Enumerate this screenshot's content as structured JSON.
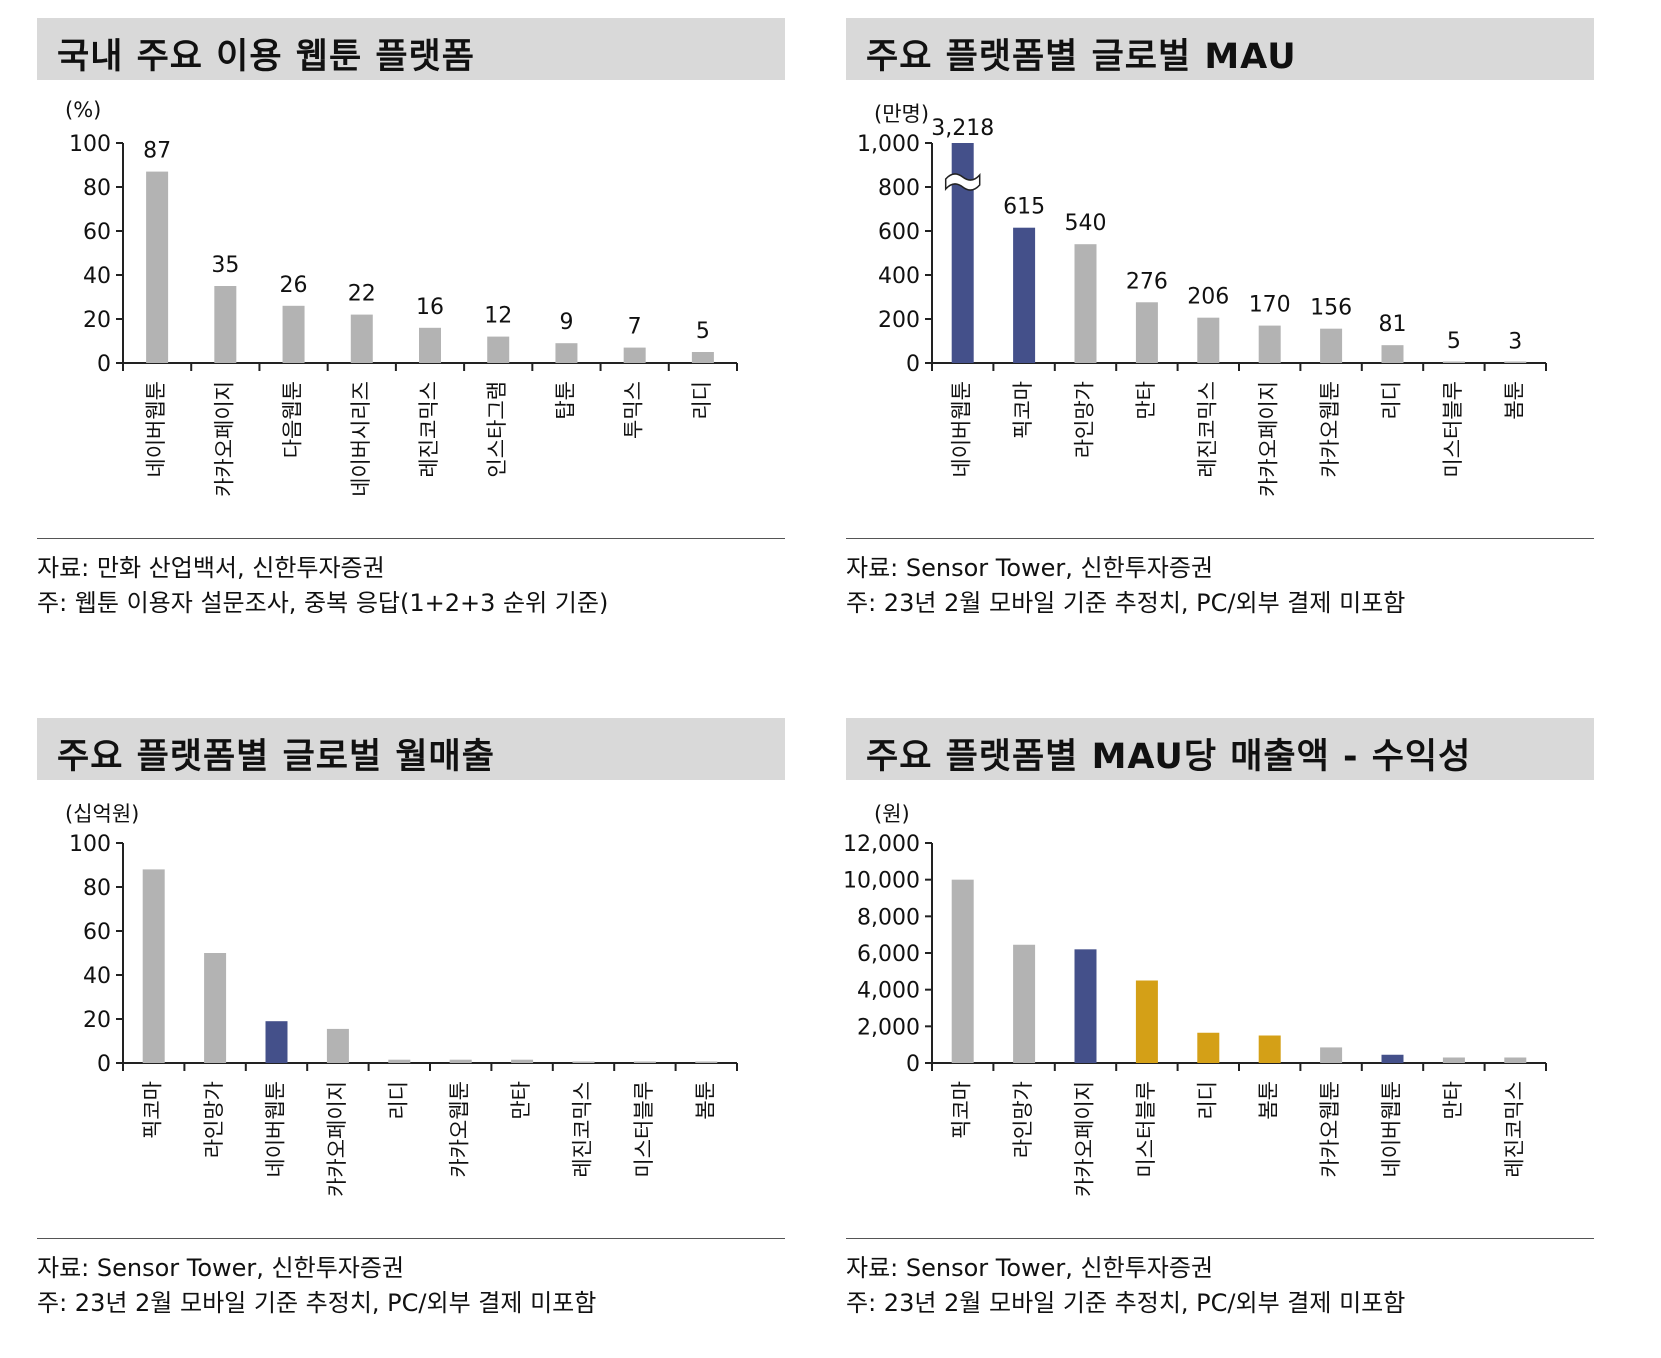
{
  "colors": {
    "gray": "#b3b3b3",
    "navy": "#44508a",
    "gold": "#d4a017",
    "axis": "#222222"
  },
  "charts": [
    {
      "title": "국내 주요 이용 웹툰 플랫폼",
      "unit": "(%)",
      "source": "자료: 만화 산업백서, 신한투자증권",
      "note": "주: 웹툰 이용자 설문조사, 중복 응답(1+2+3 순위 기준)"
    },
    {
      "title": "주요 플랫폼별 글로벌 MAU",
      "unit": "(만명)",
      "source": "자료: Sensor Tower, 신한투자증권",
      "note": "주: 23년 2월 모바일 기준 추정치, PC/외부 결제 미포함"
    },
    {
      "title": "주요 플랫폼별 글로벌 월매출",
      "unit": "(십억원)",
      "source": "자료: Sensor Tower, 신한투자증권",
      "note": "주: 23년 2월 모바일 기준 추정치, PC/외부 결제 미포함"
    },
    {
      "title": "주요 플랫폼별 MAU당 매출액 - 수익성",
      "unit": "(원)",
      "source": "자료: Sensor Tower, 신한투자증권",
      "note": "주: 23년 2월 모바일 기준 추정치, PC/외부 결제 미포함"
    }
  ],
  "chart_data": [
    {
      "type": "bar",
      "title": "국내 주요 이용 웹툰 플랫폼",
      "ylabel": "(%)",
      "ylim": [
        0,
        100
      ],
      "yticks": [
        0,
        20,
        40,
        60,
        80,
        100
      ],
      "ytick_labels": [
        "0",
        "20",
        "40",
        "60",
        "80",
        "100"
      ],
      "categories": [
        "네이버웹툰",
        "카카오페이지",
        "다음웹툰",
        "네이버시리즈",
        "레진코믹스",
        "인스타그램",
        "탑툰",
        "투믹스",
        "리디"
      ],
      "values": [
        87,
        35,
        26,
        22,
        16,
        12,
        9,
        7,
        5
      ],
      "data_labels": [
        "87",
        "35",
        "26",
        "22",
        "16",
        "12",
        "9",
        "7",
        "5"
      ],
      "colors": [
        "gray",
        "gray",
        "gray",
        "gray",
        "gray",
        "gray",
        "gray",
        "gray",
        "gray"
      ],
      "grid": false,
      "legend": "none"
    },
    {
      "type": "bar",
      "title": "주요 플랫폼별 글로벌 MAU",
      "ylabel": "(만명)",
      "ylim": [
        0,
        1000
      ],
      "yticks": [
        0,
        200,
        400,
        600,
        800,
        1000
      ],
      "ytick_labels": [
        "0",
        "200",
        "400",
        "600",
        "800",
        "1,000"
      ],
      "categories": [
        "네이버웹툰",
        "픽코마",
        "라인망가",
        "만타",
        "레진코믹스",
        "카카오페이지",
        "카카오웹툰",
        "리디",
        "미스터블루",
        "봄툰"
      ],
      "values": [
        3218,
        615,
        540,
        276,
        206,
        170,
        156,
        81,
        5,
        3
      ],
      "data_labels": [
        "3,218",
        "615",
        "540",
        "276",
        "206",
        "170",
        "156",
        "81",
        "5",
        "3"
      ],
      "colors": [
        "navy",
        "navy",
        "gray",
        "gray",
        "gray",
        "gray",
        "gray",
        "gray",
        "gray",
        "gray"
      ],
      "axis_break": true,
      "grid": false,
      "legend": "none"
    },
    {
      "type": "bar",
      "title": "주요 플랫폼별 글로벌 월매출",
      "ylabel": "(십억원)",
      "ylim": [
        0,
        100
      ],
      "yticks": [
        0,
        20,
        40,
        60,
        80,
        100
      ],
      "ytick_labels": [
        "0",
        "20",
        "40",
        "60",
        "80",
        "100"
      ],
      "categories": [
        "픽코마",
        "라인망가",
        "네이버웹툰",
        "카카오페이지",
        "리디",
        "카카오웹툰",
        "만타",
        "레진코믹스",
        "미스터블루",
        "봄툰"
      ],
      "values": [
        88,
        50,
        19,
        15.5,
        1.5,
        1.5,
        1.5,
        0.3,
        0.3,
        0.2
      ],
      "colors": [
        "gray",
        "gray",
        "navy",
        "gray",
        "gray",
        "gray",
        "gray",
        "gray",
        "gray",
        "gray"
      ],
      "grid": false,
      "legend": "none"
    },
    {
      "type": "bar",
      "title": "주요 플랫폼별 MAU당 매출액 - 수익성",
      "ylabel": "(원)",
      "ylim": [
        0,
        12000
      ],
      "yticks": [
        0,
        2000,
        4000,
        6000,
        8000,
        10000,
        12000
      ],
      "ytick_labels": [
        "0",
        "2,000",
        "4,000",
        "6,000",
        "8,000",
        "10,000",
        "12,000"
      ],
      "categories": [
        "픽코마",
        "라인망가",
        "카카오페이지",
        "미스터블루",
        "리디",
        "봄툰",
        "카카오웹툰",
        "네이버웹툰",
        "만타",
        "레진코믹스"
      ],
      "values": [
        10000,
        6450,
        6200,
        4500,
        1650,
        1500,
        850,
        450,
        300,
        300
      ],
      "colors": [
        "gray",
        "gray",
        "navy",
        "gold",
        "gold",
        "gold",
        "gray",
        "navy",
        "gray",
        "gray"
      ],
      "grid": false,
      "legend": "none"
    }
  ]
}
